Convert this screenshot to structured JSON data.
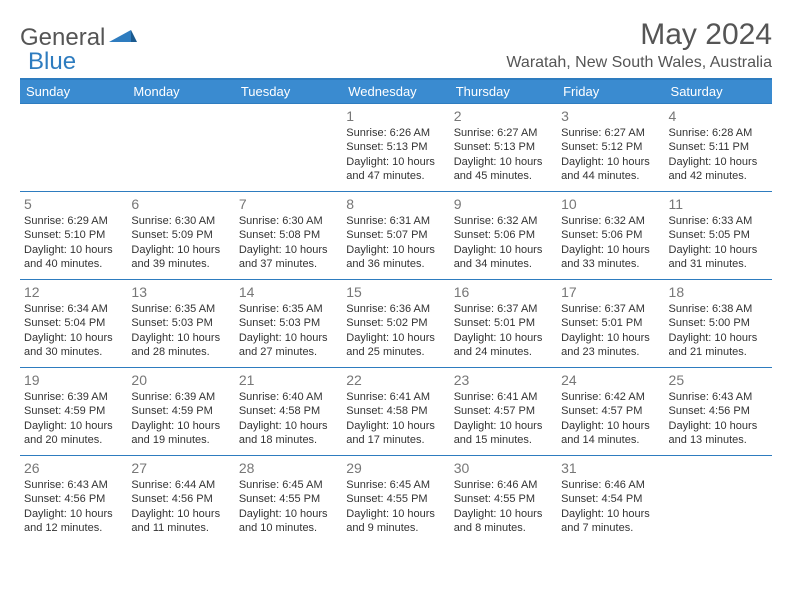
{
  "logo": {
    "text1": "General",
    "text2": "Blue"
  },
  "title": "May 2024",
  "location": "Waratah, New South Wales, Australia",
  "colors": {
    "header_bg": "#3a8bd0",
    "border": "#2e7cbf",
    "text": "#333333",
    "muted": "#777777"
  },
  "weekdays": [
    "Sunday",
    "Monday",
    "Tuesday",
    "Wednesday",
    "Thursday",
    "Friday",
    "Saturday"
  ],
  "weeks": [
    [
      null,
      null,
      null,
      {
        "n": "1",
        "sr": "Sunrise: 6:26 AM",
        "ss": "Sunset: 5:13 PM",
        "d1": "Daylight: 10 hours",
        "d2": "and 47 minutes."
      },
      {
        "n": "2",
        "sr": "Sunrise: 6:27 AM",
        "ss": "Sunset: 5:13 PM",
        "d1": "Daylight: 10 hours",
        "d2": "and 45 minutes."
      },
      {
        "n": "3",
        "sr": "Sunrise: 6:27 AM",
        "ss": "Sunset: 5:12 PM",
        "d1": "Daylight: 10 hours",
        "d2": "and 44 minutes."
      },
      {
        "n": "4",
        "sr": "Sunrise: 6:28 AM",
        "ss": "Sunset: 5:11 PM",
        "d1": "Daylight: 10 hours",
        "d2": "and 42 minutes."
      }
    ],
    [
      {
        "n": "5",
        "sr": "Sunrise: 6:29 AM",
        "ss": "Sunset: 5:10 PM",
        "d1": "Daylight: 10 hours",
        "d2": "and 40 minutes."
      },
      {
        "n": "6",
        "sr": "Sunrise: 6:30 AM",
        "ss": "Sunset: 5:09 PM",
        "d1": "Daylight: 10 hours",
        "d2": "and 39 minutes."
      },
      {
        "n": "7",
        "sr": "Sunrise: 6:30 AM",
        "ss": "Sunset: 5:08 PM",
        "d1": "Daylight: 10 hours",
        "d2": "and 37 minutes."
      },
      {
        "n": "8",
        "sr": "Sunrise: 6:31 AM",
        "ss": "Sunset: 5:07 PM",
        "d1": "Daylight: 10 hours",
        "d2": "and 36 minutes."
      },
      {
        "n": "9",
        "sr": "Sunrise: 6:32 AM",
        "ss": "Sunset: 5:06 PM",
        "d1": "Daylight: 10 hours",
        "d2": "and 34 minutes."
      },
      {
        "n": "10",
        "sr": "Sunrise: 6:32 AM",
        "ss": "Sunset: 5:06 PM",
        "d1": "Daylight: 10 hours",
        "d2": "and 33 minutes."
      },
      {
        "n": "11",
        "sr": "Sunrise: 6:33 AM",
        "ss": "Sunset: 5:05 PM",
        "d1": "Daylight: 10 hours",
        "d2": "and 31 minutes."
      }
    ],
    [
      {
        "n": "12",
        "sr": "Sunrise: 6:34 AM",
        "ss": "Sunset: 5:04 PM",
        "d1": "Daylight: 10 hours",
        "d2": "and 30 minutes."
      },
      {
        "n": "13",
        "sr": "Sunrise: 6:35 AM",
        "ss": "Sunset: 5:03 PM",
        "d1": "Daylight: 10 hours",
        "d2": "and 28 minutes."
      },
      {
        "n": "14",
        "sr": "Sunrise: 6:35 AM",
        "ss": "Sunset: 5:03 PM",
        "d1": "Daylight: 10 hours",
        "d2": "and 27 minutes."
      },
      {
        "n": "15",
        "sr": "Sunrise: 6:36 AM",
        "ss": "Sunset: 5:02 PM",
        "d1": "Daylight: 10 hours",
        "d2": "and 25 minutes."
      },
      {
        "n": "16",
        "sr": "Sunrise: 6:37 AM",
        "ss": "Sunset: 5:01 PM",
        "d1": "Daylight: 10 hours",
        "d2": "and 24 minutes."
      },
      {
        "n": "17",
        "sr": "Sunrise: 6:37 AM",
        "ss": "Sunset: 5:01 PM",
        "d1": "Daylight: 10 hours",
        "d2": "and 23 minutes."
      },
      {
        "n": "18",
        "sr": "Sunrise: 6:38 AM",
        "ss": "Sunset: 5:00 PM",
        "d1": "Daylight: 10 hours",
        "d2": "and 21 minutes."
      }
    ],
    [
      {
        "n": "19",
        "sr": "Sunrise: 6:39 AM",
        "ss": "Sunset: 4:59 PM",
        "d1": "Daylight: 10 hours",
        "d2": "and 20 minutes."
      },
      {
        "n": "20",
        "sr": "Sunrise: 6:39 AM",
        "ss": "Sunset: 4:59 PM",
        "d1": "Daylight: 10 hours",
        "d2": "and 19 minutes."
      },
      {
        "n": "21",
        "sr": "Sunrise: 6:40 AM",
        "ss": "Sunset: 4:58 PM",
        "d1": "Daylight: 10 hours",
        "d2": "and 18 minutes."
      },
      {
        "n": "22",
        "sr": "Sunrise: 6:41 AM",
        "ss": "Sunset: 4:58 PM",
        "d1": "Daylight: 10 hours",
        "d2": "and 17 minutes."
      },
      {
        "n": "23",
        "sr": "Sunrise: 6:41 AM",
        "ss": "Sunset: 4:57 PM",
        "d1": "Daylight: 10 hours",
        "d2": "and 15 minutes."
      },
      {
        "n": "24",
        "sr": "Sunrise: 6:42 AM",
        "ss": "Sunset: 4:57 PM",
        "d1": "Daylight: 10 hours",
        "d2": "and 14 minutes."
      },
      {
        "n": "25",
        "sr": "Sunrise: 6:43 AM",
        "ss": "Sunset: 4:56 PM",
        "d1": "Daylight: 10 hours",
        "d2": "and 13 minutes."
      }
    ],
    [
      {
        "n": "26",
        "sr": "Sunrise: 6:43 AM",
        "ss": "Sunset: 4:56 PM",
        "d1": "Daylight: 10 hours",
        "d2": "and 12 minutes."
      },
      {
        "n": "27",
        "sr": "Sunrise: 6:44 AM",
        "ss": "Sunset: 4:56 PM",
        "d1": "Daylight: 10 hours",
        "d2": "and 11 minutes."
      },
      {
        "n": "28",
        "sr": "Sunrise: 6:45 AM",
        "ss": "Sunset: 4:55 PM",
        "d1": "Daylight: 10 hours",
        "d2": "and 10 minutes."
      },
      {
        "n": "29",
        "sr": "Sunrise: 6:45 AM",
        "ss": "Sunset: 4:55 PM",
        "d1": "Daylight: 10 hours",
        "d2": "and 9 minutes."
      },
      {
        "n": "30",
        "sr": "Sunrise: 6:46 AM",
        "ss": "Sunset: 4:55 PM",
        "d1": "Daylight: 10 hours",
        "d2": "and 8 minutes."
      },
      {
        "n": "31",
        "sr": "Sunrise: 6:46 AM",
        "ss": "Sunset: 4:54 PM",
        "d1": "Daylight: 10 hours",
        "d2": "and 7 minutes."
      },
      null
    ]
  ]
}
